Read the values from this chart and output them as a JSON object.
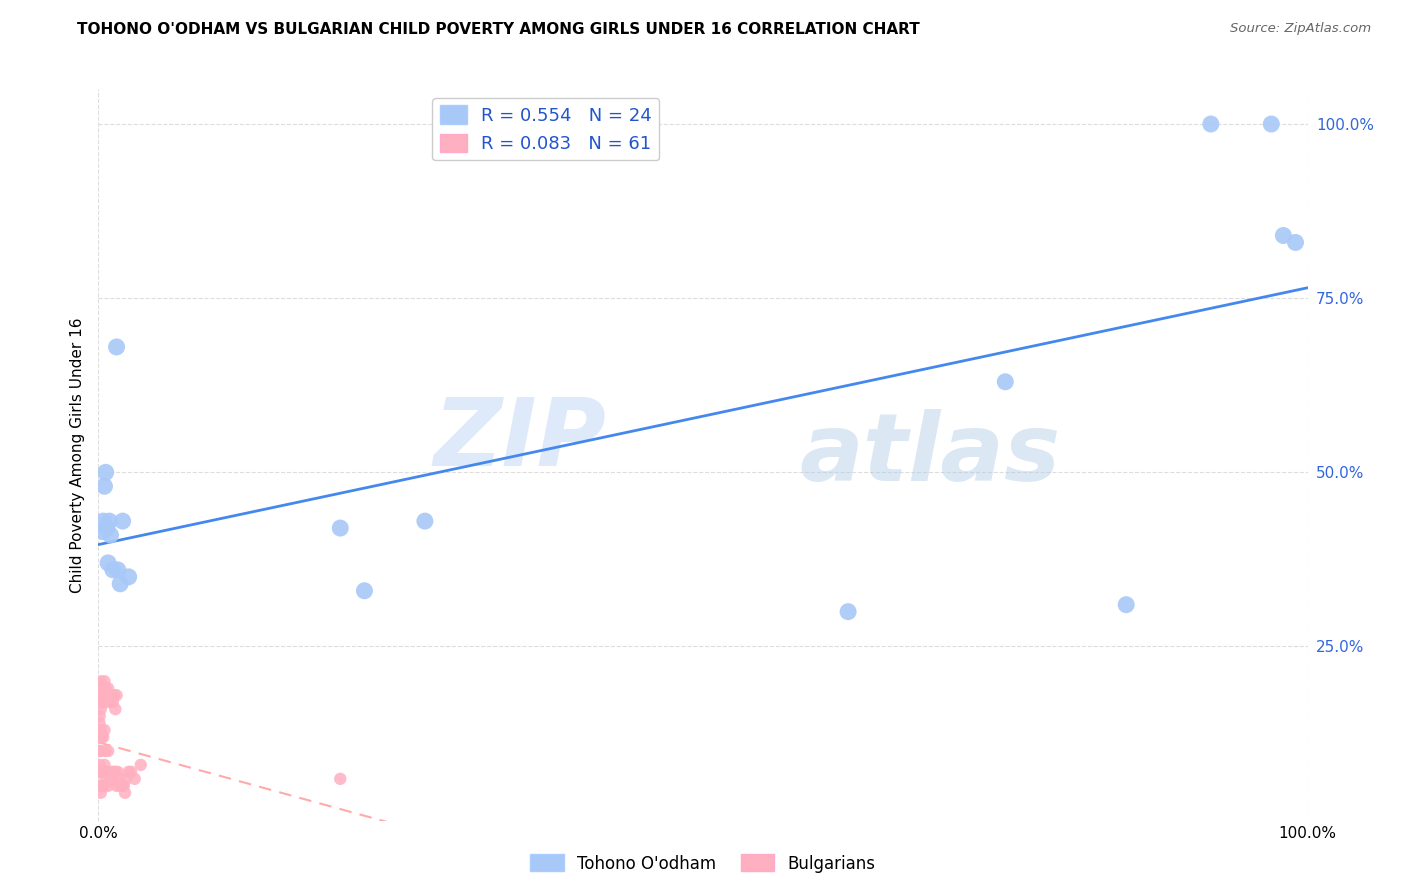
{
  "title": "TOHONO O'ODHAM VS BULGARIAN CHILD POVERTY AMONG GIRLS UNDER 16 CORRELATION CHART",
  "source": "Source: ZipAtlas.com",
  "ylabel": "Child Poverty Among Girls Under 16",
  "r_tohono": 0.554,
  "n_tohono": 24,
  "r_bulgarian": 0.083,
  "n_bulgarian": 61,
  "legend_labels": [
    "Tohono O'odham",
    "Bulgarians"
  ],
  "tohono_color": "#a8c8f8",
  "bulgarian_color": "#ffb0c0",
  "tohono_line_color": "#4488ee",
  "bulgarian_line_color": "#ffaaaa",
  "watermark_zip": "ZIP",
  "watermark_atlas": "atlas",
  "tohono_x": [
    0.003,
    0.004,
    0.005,
    0.006,
    0.007,
    0.008,
    0.009,
    0.01,
    0.012,
    0.015,
    0.016,
    0.018,
    0.02,
    0.025,
    0.2,
    0.22,
    0.27,
    0.62,
    0.75,
    0.85,
    0.92,
    0.97,
    0.98,
    0.99
  ],
  "tohono_y": [
    0.415,
    0.43,
    0.48,
    0.5,
    0.42,
    0.37,
    0.43,
    0.41,
    0.36,
    0.68,
    0.36,
    0.34,
    0.43,
    0.35,
    0.42,
    0.33,
    0.43,
    0.3,
    0.63,
    0.31,
    1.0,
    1.0,
    0.84,
    0.83
  ],
  "bulgarian_x": [
    0.001,
    0.001,
    0.001,
    0.001,
    0.001,
    0.001,
    0.001,
    0.001,
    0.001,
    0.001,
    0.002,
    0.002,
    0.002,
    0.002,
    0.002,
    0.002,
    0.002,
    0.003,
    0.003,
    0.003,
    0.004,
    0.004,
    0.004,
    0.005,
    0.005,
    0.005,
    0.005,
    0.006,
    0.006,
    0.006,
    0.007,
    0.007,
    0.008,
    0.008,
    0.008,
    0.009,
    0.009,
    0.01,
    0.01,
    0.011,
    0.012,
    0.012,
    0.013,
    0.013,
    0.014,
    0.014,
    0.015,
    0.015,
    0.016,
    0.017,
    0.018,
    0.019,
    0.02,
    0.021,
    0.022,
    0.023,
    0.025,
    0.027,
    0.03,
    0.035,
    0.2
  ],
  "bulgarian_y": [
    0.05,
    0.07,
    0.08,
    0.1,
    0.12,
    0.14,
    0.15,
    0.17,
    0.18,
    0.19,
    0.04,
    0.07,
    0.1,
    0.13,
    0.16,
    0.18,
    0.2,
    0.05,
    0.12,
    0.18,
    0.07,
    0.12,
    0.17,
    0.05,
    0.08,
    0.13,
    0.2,
    0.06,
    0.1,
    0.19,
    0.07,
    0.18,
    0.05,
    0.1,
    0.19,
    0.07,
    0.17,
    0.06,
    0.18,
    0.07,
    0.06,
    0.17,
    0.07,
    0.18,
    0.07,
    0.16,
    0.05,
    0.18,
    0.07,
    0.06,
    0.05,
    0.05,
    0.05,
    0.05,
    0.04,
    0.06,
    0.07,
    0.07,
    0.06,
    0.08,
    0.06
  ],
  "xlim": [
    0.0,
    1.0
  ],
  "ylim": [
    0.0,
    1.05
  ],
  "xticks": [
    0.0,
    1.0
  ],
  "xticklabels": [
    "0.0%",
    "100.0%"
  ],
  "yticks": [
    0.0,
    0.25,
    0.5,
    0.75,
    1.0
  ],
  "yticklabels": [
    "",
    "25.0%",
    "50.0%",
    "75.0%",
    "100.0%"
  ],
  "grid_color": "#dddddd",
  "title_fontsize": 11,
  "axis_fontsize": 11,
  "tick_fontsize": 11
}
